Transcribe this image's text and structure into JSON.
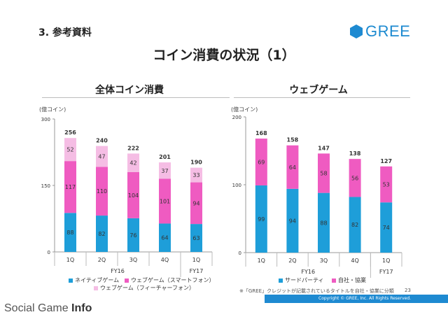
{
  "header": {
    "section": "3. 参考資料",
    "title": "コイン消費の状況（1）",
    "logo_text": "GREE"
  },
  "colors": {
    "brand": "#1e8ad1",
    "native": "#1e9ed9",
    "smartphone": "#ef5bc1",
    "featurephone": "#f5bde4",
    "thirdparty": "#1e9ed9",
    "inhouse": "#ef5bc1"
  },
  "chart_data": [
    {
      "type": "bar",
      "stacked": true,
      "title": "全体コイン消費",
      "ylabel": "(億コイン)",
      "ylim": [
        0,
        300
      ],
      "yticks": [
        "0",
        "150",
        "300"
      ],
      "categories": [
        "1Q",
        "2Q",
        "3Q",
        "4Q",
        "1Q"
      ],
      "fiscal_labels": [
        "FY16",
        "FY17"
      ],
      "series": [
        {
          "name": "ネイティブゲーム",
          "color": "#1e9ed9",
          "values": [
            88,
            82,
            76,
            64,
            63
          ],
          "labels": [
            "88",
            "82",
            "76",
            "64",
            "63"
          ]
        },
        {
          "name": "ウェブゲーム（スマートフォン）",
          "color": "#ef5bc1",
          "values": [
            117,
            110,
            104,
            101,
            94
          ],
          "labels": [
            "117",
            "110",
            "104",
            "101",
            "94"
          ]
        },
        {
          "name": "ウェブゲーム（フィーチャーフォン）",
          "color": "#f5bde4",
          "values": [
            52,
            47,
            42,
            37,
            33
          ],
          "labels": [
            "52",
            "47",
            "42",
            "37",
            "33"
          ]
        }
      ],
      "totals": [
        "256",
        "240",
        "222",
        "201",
        "190"
      ],
      "legend": [
        {
          "label": "ネイティブゲーム",
          "color": "#1e9ed9"
        },
        {
          "label": "ウェブゲーム（スマートフォン）",
          "color": "#ef5bc1"
        },
        {
          "label": "ウェブゲーム（フィーチャーフォン）",
          "color": "#f5bde4"
        }
      ]
    },
    {
      "type": "bar",
      "stacked": true,
      "title": "ウェブゲーム",
      "ylabel": "(億コイン)",
      "ylim": [
        0,
        200
      ],
      "yticks": [
        "0",
        "100",
        "200"
      ],
      "categories": [
        "1Q",
        "2Q",
        "3Q",
        "4Q",
        "1Q"
      ],
      "fiscal_labels": [
        "FY16",
        "FY17"
      ],
      "series": [
        {
          "name": "サードパーティ",
          "color": "#1e9ed9",
          "values": [
            99,
            94,
            88,
            82,
            74
          ],
          "labels": [
            "99",
            "94",
            "88",
            "82",
            "74"
          ]
        },
        {
          "name": "自社・協業",
          "color": "#ef5bc1",
          "values": [
            69,
            64,
            58,
            56,
            53
          ],
          "labels": [
            "69",
            "64",
            "58",
            "56",
            "53"
          ]
        }
      ],
      "totals": [
        "168",
        "158",
        "147",
        "138",
        "127"
      ],
      "legend": [
        {
          "label": "サードパーティ",
          "color": "#1e9ed9"
        },
        {
          "label": "自社・協業",
          "color": "#ef5bc1"
        }
      ]
    }
  ],
  "footer": {
    "note": "※「GREE」クレジットが記載されているタイトルを自社・協業に分類",
    "page": "23",
    "copyright": "Copyright © GREE, Inc. All Rights Reserved.",
    "watermark_a": "Social Game ",
    "watermark_b": "Info"
  }
}
